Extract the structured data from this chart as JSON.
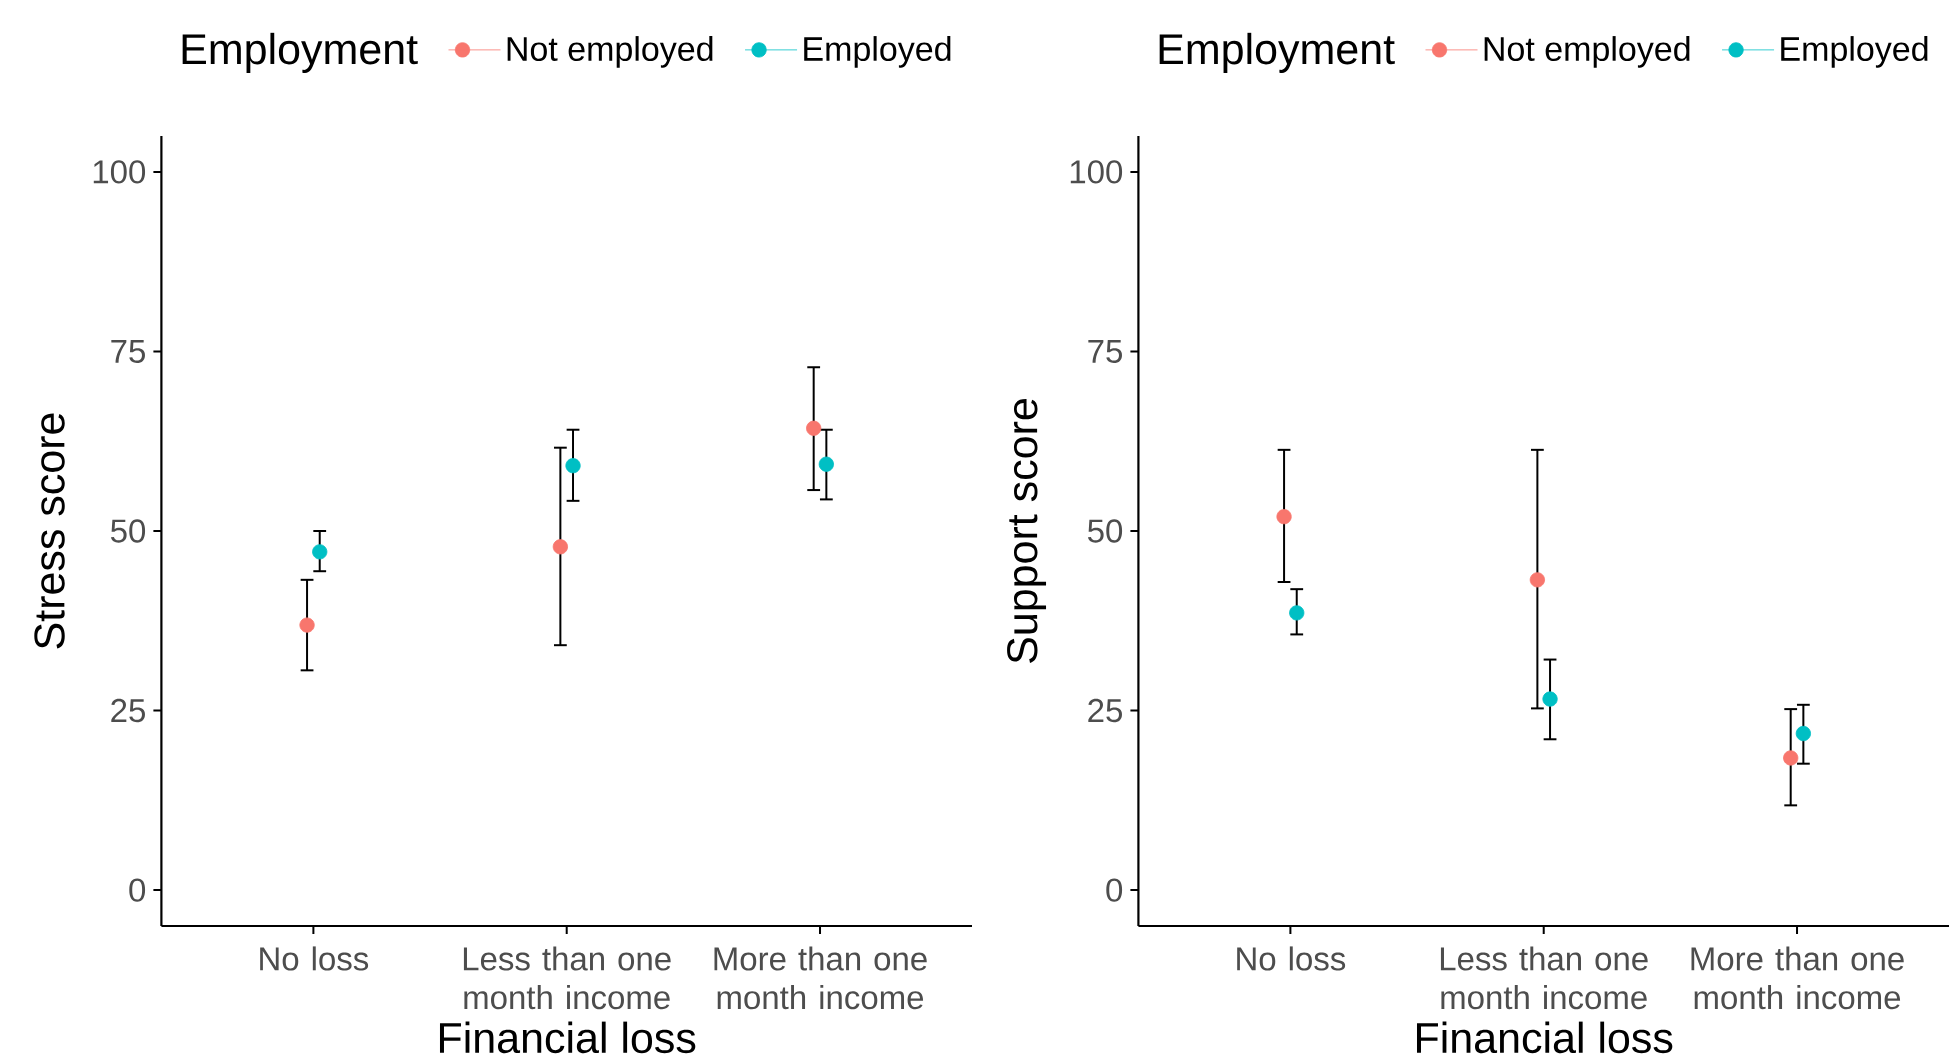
{
  "chart_data": [
    {
      "type": "scatter",
      "legend_title": "Employment",
      "xlabel": "Financial loss",
      "ylabel": "Stress score",
      "categories": [
        "No loss",
        "Less than one month income",
        "More than one month income"
      ],
      "series": [
        {
          "name": "Not employed",
          "color": "#f8766d",
          "values": [
            36.9,
            47.8,
            64.3
          ],
          "errors": [
            [
              30.6,
              43.2
            ],
            [
              34.1,
              61.6
            ],
            [
              55.7,
              72.8
            ]
          ]
        },
        {
          "name": "Employed",
          "color": "#00bfc4",
          "values": [
            47.1,
            59.1,
            59.3
          ],
          "errors": [
            [
              44.4,
              50.0
            ],
            [
              54.2,
              64.1
            ],
            [
              54.4,
              64.1
            ]
          ]
        }
      ],
      "ylim": [
        -5,
        105
      ],
      "yticks": [
        0,
        25,
        50,
        75,
        100
      ],
      "legend": "top",
      "marker": "circle"
    },
    {
      "type": "scatter",
      "legend_title": "Employment",
      "xlabel": "Financial loss",
      "ylabel": "Support score",
      "categories": [
        "No loss",
        "Less than one month income",
        "More than one month income"
      ],
      "series": [
        {
          "name": "Not employed",
          "color": "#f8766d",
          "values": [
            52.0,
            43.2,
            18.4
          ],
          "errors": [
            [
              42.9,
              61.3
            ],
            [
              25.3,
              61.3
            ],
            [
              11.8,
              25.2
            ]
          ]
        },
        {
          "name": "Employed",
          "color": "#00bfc4",
          "values": [
            38.6,
            26.6,
            21.8
          ],
          "errors": [
            [
              35.6,
              41.9
            ],
            [
              21.0,
              32.1
            ],
            [
              17.6,
              25.8
            ]
          ]
        }
      ],
      "ylim": [
        -5,
        105
      ],
      "yticks": [
        0,
        25,
        50,
        75,
        100
      ],
      "legend": "top",
      "marker": "circle"
    }
  ]
}
